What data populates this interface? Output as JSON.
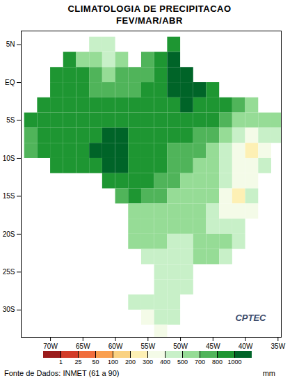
{
  "chart_data": {
    "type": "map",
    "title": "CLIMATOLOGIA DE PRECIPITACAO",
    "subtitle": "FEV/MAR/ABR",
    "caption": "Fonte de Dados: INMET (61 a 90)",
    "annotations": [
      {
        "text": "CPTEC"
      }
    ],
    "xlim": [
      -74.5,
      -34.5
    ],
    "xticks": [
      {
        "value": -70,
        "label": "70W"
      },
      {
        "value": -65,
        "label": "65W"
      },
      {
        "value": -60,
        "label": "60W"
      },
      {
        "value": -55,
        "label": "55W"
      },
      {
        "value": -50,
        "label": "50W"
      },
      {
        "value": -45,
        "label": "45W"
      },
      {
        "value": -40,
        "label": "40W"
      },
      {
        "value": -35,
        "label": "35W"
      }
    ],
    "ylim": [
      -33.6,
      6.8
    ],
    "yticks": [
      {
        "value": 5,
        "label": "5N"
      },
      {
        "value": 0,
        "label": "EQ"
      },
      {
        "value": -5,
        "label": "5S"
      },
      {
        "value": -10,
        "label": "10S"
      },
      {
        "value": -15,
        "label": "15S"
      },
      {
        "value": -20,
        "label": "20S"
      },
      {
        "value": -25,
        "label": "25S"
      },
      {
        "value": -30,
        "label": "30S"
      }
    ],
    "colorbar": {
      "ticks": [
        1,
        25,
        50,
        100,
        200,
        300,
        400,
        500,
        700,
        800,
        1000
      ],
      "colors": [
        "#9b1c1c",
        "#d23c28",
        "#f06e3c",
        "#faa050",
        "#fad282",
        "#fdf0b4",
        "#f4fbe8",
        "#c8f0c8",
        "#96dc96",
        "#50b45a",
        "#1e9632",
        "#006428"
      ],
      "label": "mm"
    },
    "precipitation": {
      "lon": [
        -73,
        -71,
        -69,
        -67,
        -65,
        -63,
        -61,
        -59,
        -57,
        -55,
        -53,
        -51,
        -49,
        -47,
        -45,
        -43,
        -41,
        -39,
        -37,
        -35
      ],
      "lat": [
        5,
        3,
        1,
        -1,
        -3,
        -5,
        -7,
        -9,
        -11,
        -13,
        -15,
        -17,
        -19,
        -21,
        -23,
        -25,
        -27,
        -29,
        -31,
        -33
      ],
      "values": [
        [
          null,
          null,
          null,
          null,
          null,
          450,
          450,
          null,
          null,
          null,
          null,
          900,
          null,
          null,
          null,
          null,
          null,
          null,
          null,
          null
        ],
        [
          null,
          null,
          null,
          800,
          600,
          500,
          450,
          500,
          null,
          700,
          800,
          1100,
          null,
          null,
          null,
          null,
          null,
          null,
          null,
          null
        ],
        [
          null,
          null,
          850,
          850,
          800,
          700,
          650,
          700,
          700,
          750,
          900,
          1100,
          1050,
          null,
          null,
          null,
          null,
          null,
          null,
          null
        ],
        [
          null,
          null,
          850,
          800,
          800,
          750,
          750,
          750,
          750,
          850,
          900,
          1100,
          1100,
          1000,
          900,
          null,
          null,
          null,
          null,
          null
        ],
        [
          null,
          850,
          850,
          850,
          800,
          800,
          800,
          800,
          800,
          800,
          850,
          950,
          1000,
          900,
          850,
          850,
          750,
          650,
          null,
          null
        ],
        [
          800,
          850,
          850,
          850,
          800,
          800,
          850,
          850,
          800,
          800,
          800,
          850,
          850,
          850,
          800,
          700,
          550,
          550,
          500,
          500
        ],
        [
          750,
          800,
          850,
          900,
          950,
          950,
          1000,
          1000,
          900,
          850,
          800,
          800,
          800,
          750,
          700,
          500,
          400,
          350,
          400,
          450
        ],
        [
          700,
          800,
          850,
          900,
          950,
          1050,
          1050,
          1050,
          900,
          850,
          800,
          750,
          750,
          700,
          600,
          450,
          300,
          250,
          350,
          null
        ],
        [
          null,
          null,
          800,
          850,
          850,
          950,
          1000,
          1000,
          900,
          850,
          800,
          750,
          700,
          650,
          550,
          400,
          300,
          300,
          400,
          null
        ],
        [
          null,
          null,
          null,
          null,
          null,
          null,
          800,
          850,
          850,
          800,
          750,
          700,
          650,
          600,
          550,
          400,
          300,
          350,
          null,
          null
        ],
        [
          null,
          null,
          null,
          null,
          null,
          null,
          null,
          750,
          800,
          750,
          700,
          650,
          600,
          550,
          500,
          350,
          250,
          400,
          null,
          null
        ],
        [
          null,
          null,
          null,
          null,
          null,
          null,
          null,
          null,
          650,
          650,
          600,
          550,
          550,
          500,
          450,
          350,
          300,
          350,
          null,
          null
        ],
        [
          null,
          null,
          null,
          null,
          null,
          null,
          null,
          null,
          550,
          550,
          550,
          500,
          500,
          500,
          450,
          450,
          400,
          null,
          null,
          null
        ],
        [
          null,
          null,
          null,
          null,
          null,
          null,
          null,
          null,
          500,
          500,
          500,
          450,
          450,
          500,
          550,
          500,
          400,
          null,
          null,
          null
        ],
        [
          null,
          null,
          null,
          null,
          null,
          null,
          null,
          null,
          null,
          450,
          450,
          400,
          450,
          550,
          550,
          450,
          null,
          null,
          null,
          null
        ],
        [
          null,
          null,
          null,
          null,
          null,
          null,
          null,
          null,
          null,
          null,
          450,
          450,
          450,
          null,
          null,
          null,
          null,
          null,
          null,
          null
        ],
        [
          null,
          null,
          null,
          null,
          null,
          null,
          null,
          null,
          null,
          null,
          450,
          450,
          450,
          null,
          null,
          null,
          null,
          null,
          null,
          null
        ],
        [
          null,
          null,
          null,
          null,
          null,
          null,
          null,
          null,
          400,
          400,
          400,
          450,
          null,
          null,
          null,
          null,
          null,
          null,
          null,
          null
        ],
        [
          null,
          null,
          null,
          null,
          null,
          null,
          null,
          null,
          null,
          350,
          400,
          400,
          null,
          null,
          null,
          null,
          null,
          null,
          null,
          null
        ],
        [
          null,
          null,
          null,
          null,
          null,
          null,
          null,
          null,
          null,
          null,
          350,
          null,
          null,
          null,
          null,
          null,
          null,
          null,
          null,
          null
        ]
      ]
    }
  }
}
